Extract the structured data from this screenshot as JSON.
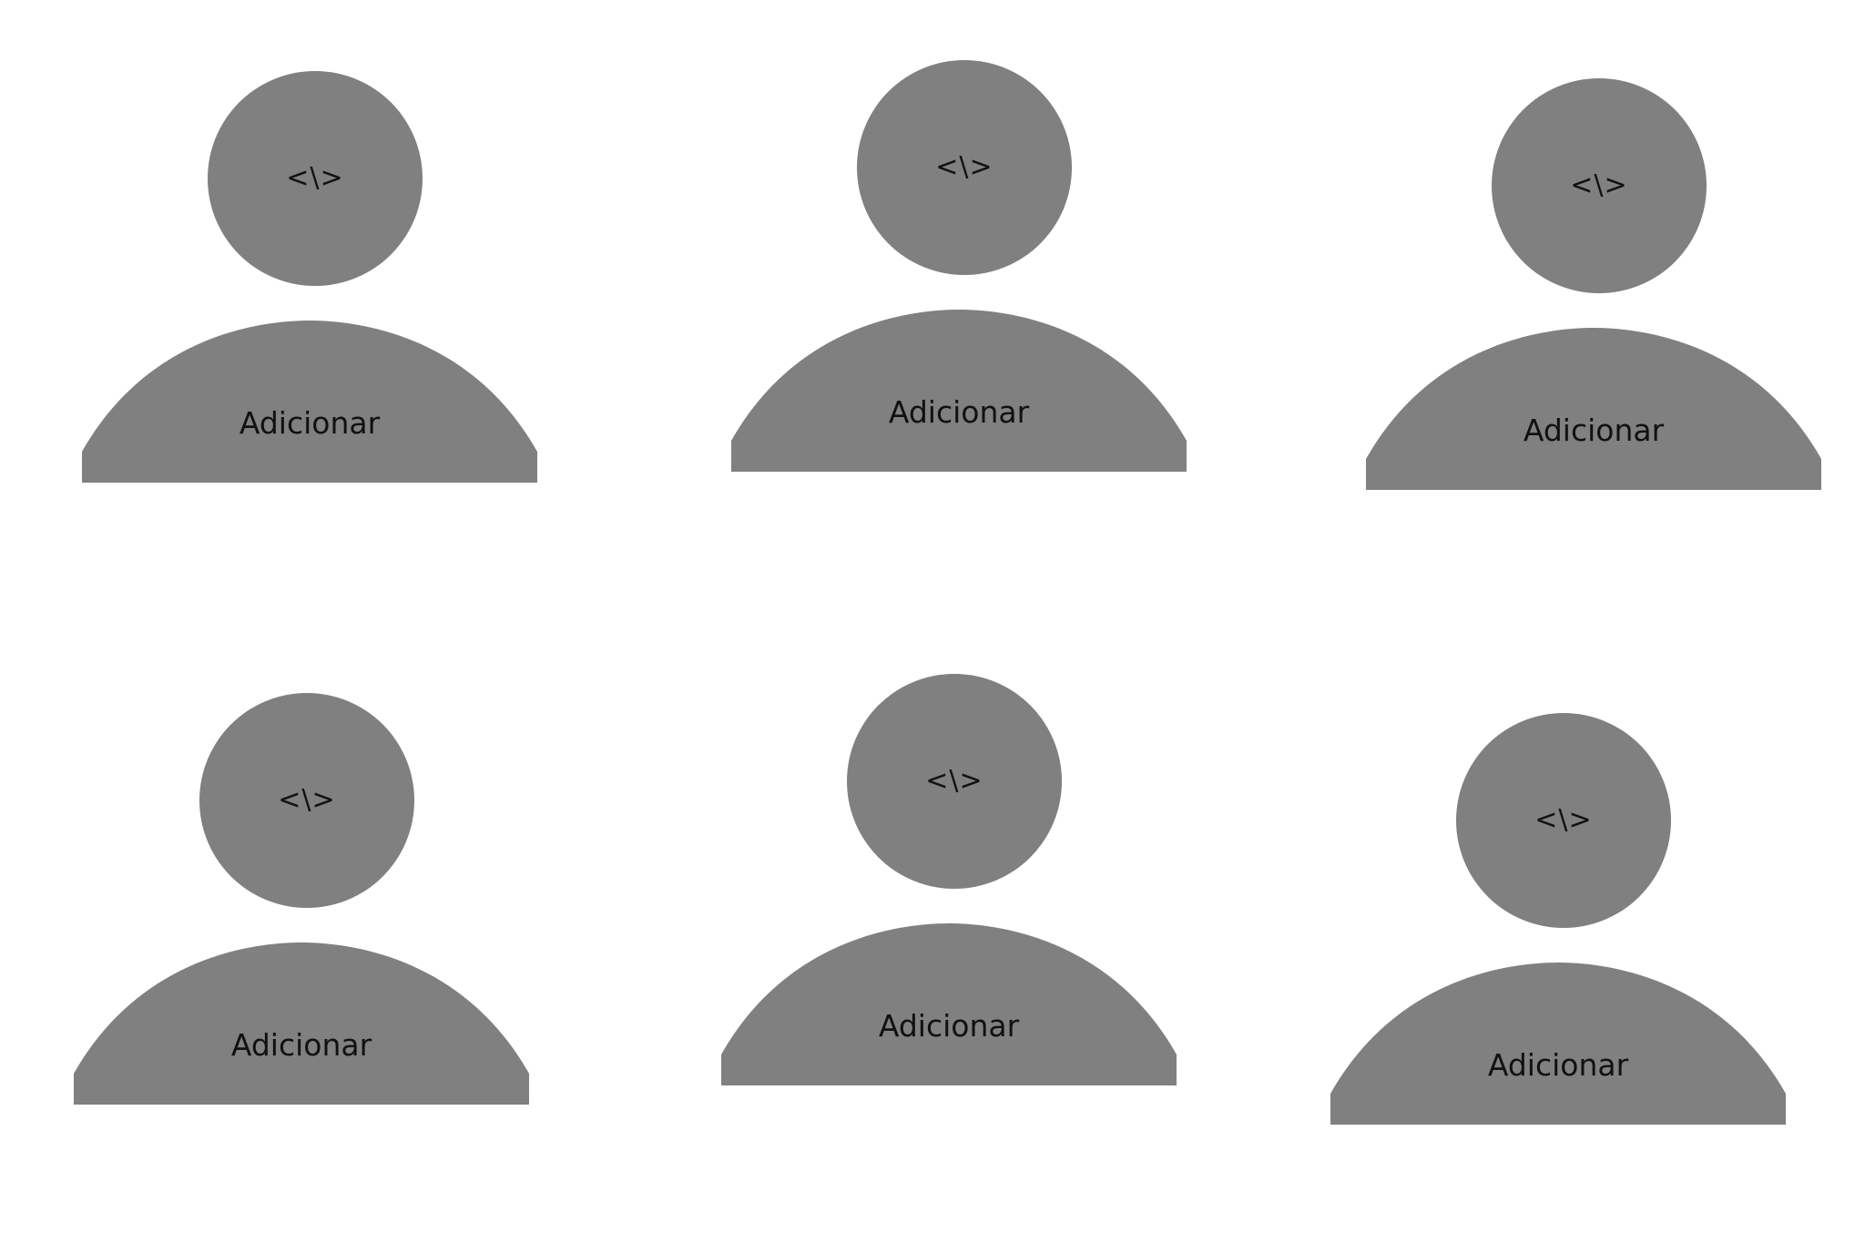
{
  "colors": {
    "placeholder_gray": "#808080",
    "background": "#ffffff",
    "text": "#111111"
  },
  "avatars": [
    {
      "head_icon": "code-icon",
      "head_text": "<\\>",
      "add_label": "Adicionar"
    },
    {
      "head_icon": "code-icon",
      "head_text": "<\\>",
      "add_label": "Adicionar"
    },
    {
      "head_icon": "code-icon",
      "head_text": "<\\>",
      "add_label": "Adicionar"
    },
    {
      "head_icon": "code-icon",
      "head_text": "<\\>",
      "add_label": "Adicionar"
    },
    {
      "head_icon": "code-icon",
      "head_text": "<\\>",
      "add_label": "Adicionar"
    },
    {
      "head_icon": "code-icon",
      "head_text": "<\\>",
      "add_label": "Adicionar"
    }
  ]
}
